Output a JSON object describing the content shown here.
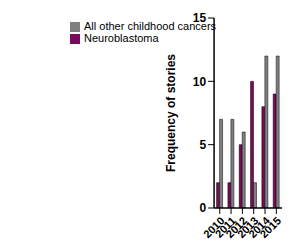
{
  "chart_data": {
    "type": "bar",
    "y_label": "Frequency of stories",
    "categories": [
      "2010",
      "2011",
      "2012",
      "2013",
      "2014",
      "2015"
    ],
    "series": [
      {
        "name": "Neuroblastoma",
        "color": "#7a0a5c",
        "values": [
          2,
          2,
          5,
          10,
          8,
          9
        ]
      },
      {
        "name": "All other childhood cancers",
        "color": "#808080",
        "values": [
          7,
          7,
          6,
          2,
          12,
          12
        ]
      }
    ],
    "ylim": [
      0,
      15
    ],
    "yticks": [
      0,
      5,
      10,
      15
    ],
    "grid": false,
    "legend": "upper left"
  }
}
